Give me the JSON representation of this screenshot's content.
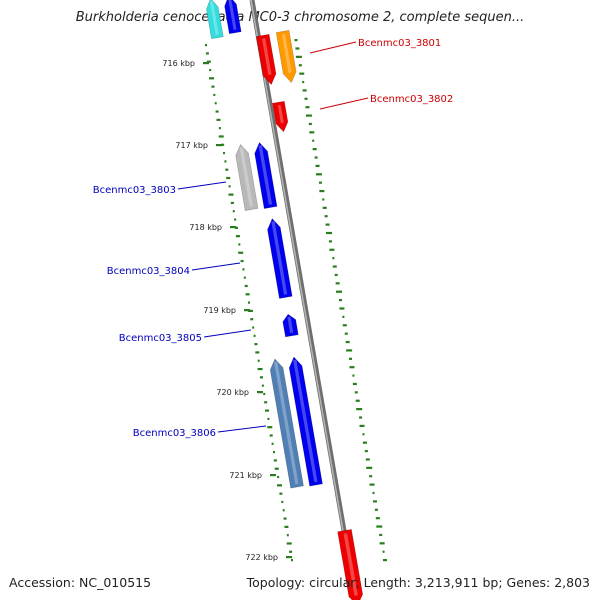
{
  "title": "Burkholderia cenocepacia MC0-3 chromosome 2, complete sequen...",
  "footer": {
    "accession": "Accession: NC_010515",
    "summary": "Topology: circular; Length: 3,213,911 bp; Genes: 2,803"
  },
  "colors": {
    "backbone": "#8c8c8c",
    "forward_label": "#cc0000",
    "reverse_label": "#0000bb",
    "gc_dots": "#2a7d1e",
    "forward_gene": "#ee0000",
    "forward_alt": "#ff9900",
    "reverse_gene": "#0000ee",
    "reverse_gray": "#b8b8b8",
    "reverse_steel": "#4f7fb5",
    "cyan_gene": "#33dddd"
  },
  "scale": {
    "ticks": [
      "716 kbp",
      "717 kbp",
      "718 kbp",
      "719 kbp",
      "720 kbp",
      "721 kbp",
      "722 kbp"
    ]
  },
  "genes": {
    "forward": [
      {
        "label": "Bcenmc03_3801",
        "color": "forward_gene"
      },
      {
        "label": "",
        "color": "forward_alt"
      },
      {
        "label": "Bcenmc03_3802",
        "color": "forward_gene"
      }
    ],
    "reverse": [
      {
        "label": "Bcenmc03_3803",
        "color": "reverse_gene"
      },
      {
        "label": "Bcenmc03_3804",
        "color": "reverse_gene"
      },
      {
        "label": "Bcenmc03_3805",
        "color": "reverse_gene"
      },
      {
        "label": "Bcenmc03_3806",
        "color": "reverse_gene"
      }
    ]
  }
}
